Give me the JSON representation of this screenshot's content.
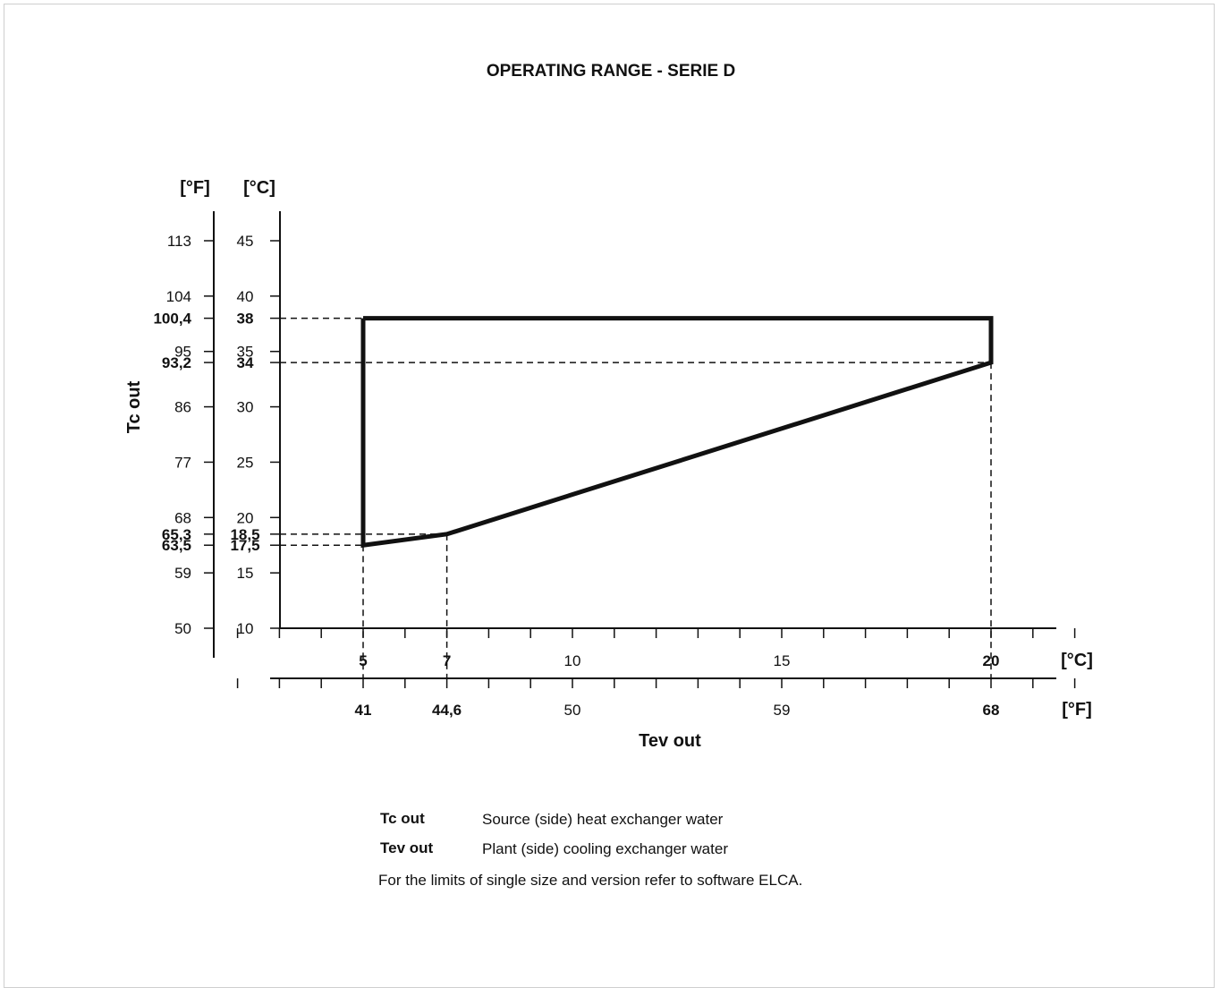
{
  "chart_data": {
    "type": "line",
    "title": "OPERATING RANGE - SERIE D",
    "ylabel": "Tc out",
    "xlabel": "Tev out",
    "y_unit_c": "[°C]",
    "y_unit_f": "[°F]",
    "x_unit_c": "[°C]",
    "x_unit_f": "[°F]",
    "ylim": [
      10,
      48
    ],
    "xlim": [
      1,
      24.5
    ],
    "y_ticks_c": [
      {
        "c": 45,
        "label": "45",
        "bold": false
      },
      {
        "c": 40,
        "label": "40",
        "bold": false
      },
      {
        "c": 38,
        "label": "38",
        "bold": true
      },
      {
        "c": 35,
        "label": "35",
        "bold": false
      },
      {
        "c": 34,
        "label": "34",
        "bold": true
      },
      {
        "c": 30,
        "label": "30",
        "bold": false
      },
      {
        "c": 25,
        "label": "25",
        "bold": false
      },
      {
        "c": 20,
        "label": "20",
        "bold": false
      },
      {
        "c": 18.5,
        "label": "18,5",
        "bold": true
      },
      {
        "c": 17.5,
        "label": "17,5",
        "bold": true
      },
      {
        "c": 15,
        "label": "15",
        "bold": false
      },
      {
        "c": 10,
        "label": "10",
        "bold": false
      }
    ],
    "y_ticks_f": [
      {
        "c": 45,
        "label": "113",
        "bold": false
      },
      {
        "c": 40,
        "label": "104",
        "bold": false
      },
      {
        "c": 38,
        "label": "100,4",
        "bold": true
      },
      {
        "c": 35,
        "label": "95",
        "bold": false
      },
      {
        "c": 34,
        "label": "93,2",
        "bold": true
      },
      {
        "c": 30,
        "label": "86",
        "bold": false
      },
      {
        "c": 25,
        "label": "77",
        "bold": false
      },
      {
        "c": 20,
        "label": "68",
        "bold": false
      },
      {
        "c": 18.5,
        "label": "65,3",
        "bold": true
      },
      {
        "c": 17.5,
        "label": "63,5",
        "bold": true
      },
      {
        "c": 15,
        "label": "59",
        "bold": false
      },
      {
        "c": 10,
        "label": "50",
        "bold": false
      }
    ],
    "x_ticks": [
      2,
      3,
      4,
      5,
      6,
      7,
      8,
      9,
      10,
      11,
      12,
      13,
      14,
      15,
      16,
      17,
      18,
      19,
      20,
      21,
      22
    ],
    "x_labels_c": [
      {
        "c": 5,
        "label": "5",
        "bold": true
      },
      {
        "c": 7,
        "label": "7",
        "bold": true
      },
      {
        "c": 10,
        "label": "10",
        "bold": false
      },
      {
        "c": 15,
        "label": "15",
        "bold": false
      },
      {
        "c": 20,
        "label": "20",
        "bold": true
      }
    ],
    "x_labels_f": [
      {
        "c": 5,
        "label": "41",
        "bold": true
      },
      {
        "c": 7,
        "label": "44,6",
        "bold": true
      },
      {
        "c": 10,
        "label": "50",
        "bold": false
      },
      {
        "c": 15,
        "label": "59",
        "bold": false
      },
      {
        "c": 20,
        "label": "68",
        "bold": true
      }
    ],
    "series": [
      {
        "x": [
          5,
          20,
          20,
          7,
          5,
          5
        ],
        "y": [
          38,
          38,
          34,
          18.5,
          17.5,
          38
        ]
      }
    ],
    "reference_lines": [
      {
        "y": 38,
        "x_to": 5
      },
      {
        "y": 34,
        "x_to": 20
      },
      {
        "y": 18.5,
        "x_to": 7
      },
      {
        "y": 17.5,
        "x_to": 5
      },
      {
        "x": 5,
        "y_to": 17.5
      },
      {
        "x": 7,
        "y_to": 18.5
      },
      {
        "x": 20,
        "y_to": 34
      }
    ],
    "grid": false
  },
  "legend": {
    "items": [
      {
        "key": "Tc out",
        "desc": "Source (side) heat exchanger water"
      },
      {
        "key": "Tev out",
        "desc": "Plant (side) cooling exchanger water"
      }
    ],
    "note": "For the limits of single size and version refer to software ELCA."
  }
}
